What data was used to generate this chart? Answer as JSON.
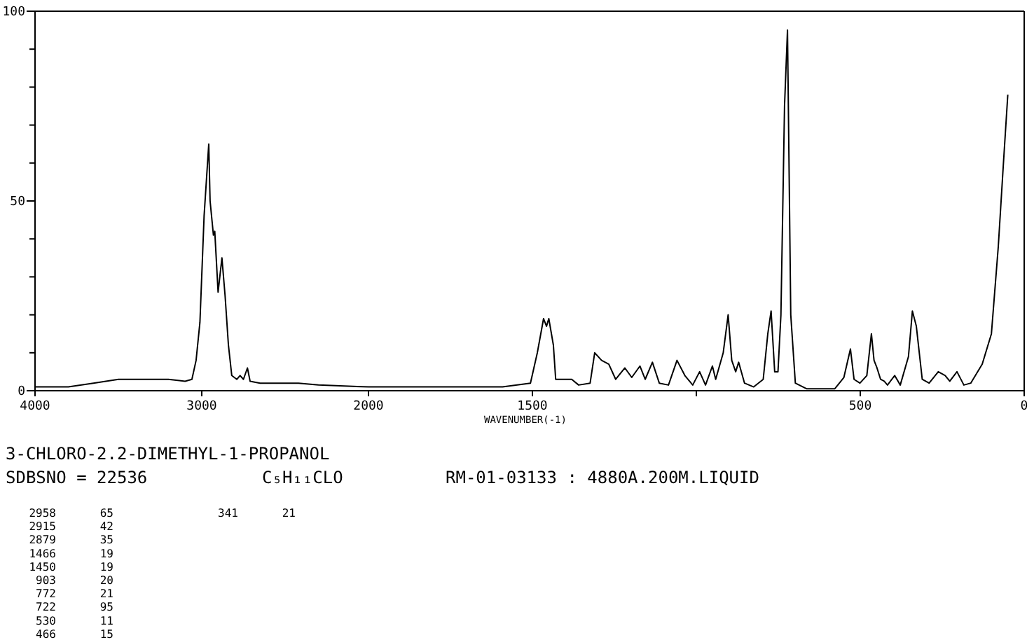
{
  "chart_data": [
    {
      "type": "line",
      "title": "3-CHLORO-2.2-DIMETHYL-1-PROPANOL",
      "subtitle": "SDBSNO = 22536",
      "annotations": [
        "C₅H₁₁CLO",
        "RM-01-03133 : 4880A.200M.LIQUID",
        "2958 65",
        "2915 42",
        "2879 35",
        "1466 19",
        "1450 19",
        "903 20",
        "772 21",
        "722 95",
        "530 11",
        "466 15",
        "341 21"
      ],
      "xlim": [
        4000,
        2000
      ],
      "xticks": [
        4000,
        3000,
        2000
      ],
      "ylim": [
        0,
        100
      ],
      "yticks": [
        0,
        {
          "value": 10,
          "label": null
        },
        {
          "value": 20,
          "label": null
        },
        {
          "value": 30,
          "label": null
        },
        {
          "value": 40,
          "label": null
        },
        50,
        {
          "value": 60,
          "label": null
        },
        {
          "value": 70,
          "label": null
        },
        {
          "value": 80,
          "label": null
        },
        {
          "value": 90,
          "label": null
        },
        100
      ],
      "grid": false,
      "marker": "none",
      "line_style": "solid",
      "series": [
        {
          "color": "#000000",
          "x": [
            4000,
            3800,
            3650,
            3500,
            3200,
            3100,
            3059,
            3034,
            3011,
            2986,
            2958,
            2950,
            2930,
            2922,
            2902,
            2879,
            2860,
            2840,
            2820,
            2790,
            2770,
            2750,
            2726,
            2710,
            2650,
            2420,
            2300,
            2000
          ],
          "values": [
            1,
            1,
            2,
            3,
            3,
            2.5,
            3,
            8,
            18,
            46,
            65,
            50,
            41,
            42,
            26,
            35,
            25,
            12,
            4,
            3,
            4,
            3,
            6,
            2.5,
            2,
            2,
            1.5,
            1
          ]
        }
      ]
    },
    {
      "type": "line",
      "xlabel": "WAVENUMBER(-1)",
      "xlim": [
        2000,
        0
      ],
      "xticks": [
        1500,
        {
          "value": 1000,
          "label": null
        },
        500,
        0
      ],
      "ylim": [
        0,
        100
      ],
      "tick_labels": "x",
      "grid": false,
      "marker": "none",
      "line_style": "solid",
      "series": [
        {
          "color": "#000000",
          "x": [
            2000,
            1800,
            1591,
            1506,
            1485,
            1466,
            1457,
            1450,
            1436,
            1429,
            1380,
            1359,
            1324,
            1310,
            1289,
            1267,
            1246,
            1218,
            1197,
            1172,
            1156,
            1134,
            1113,
            1085,
            1059,
            1035,
            1011,
            990,
            972,
            951,
            941,
            918,
            903,
            892,
            880,
            871,
            853,
            825,
            796,
            782,
            772,
            761,
            751,
            742,
            731,
            722,
            712,
            698,
            663,
            578,
            550,
            530,
            519,
            501,
            480,
            466,
            458,
            449,
            438,
            427,
            417,
            395,
            378,
            353,
            341,
            329,
            311,
            290,
            262,
            241,
            227,
            205,
            184,
            163,
            128,
            100,
            79,
            64,
            50
          ],
          "values": [
            1,
            1,
            1,
            2,
            10,
            19,
            17,
            19,
            12,
            3,
            3,
            1.5,
            2,
            10,
            8,
            7,
            3,
            6,
            3.5,
            6.5,
            3,
            7.5,
            2,
            1.5,
            8,
            4,
            1.5,
            5,
            1.5,
            6.5,
            3,
            10,
            20,
            8,
            5,
            7.5,
            2,
            1,
            3,
            15,
            21,
            5,
            5,
            20,
            75,
            95,
            20,
            2,
            0.5,
            0.5,
            3.5,
            11,
            3,
            2,
            4,
            15,
            8,
            6,
            3,
            2.5,
            1.5,
            4,
            1.5,
            9,
            21,
            17,
            3,
            2,
            5,
            4,
            2.5,
            5,
            1.5,
            2,
            7,
            15,
            38,
            59,
            78
          ]
        }
      ]
    }
  ]
}
